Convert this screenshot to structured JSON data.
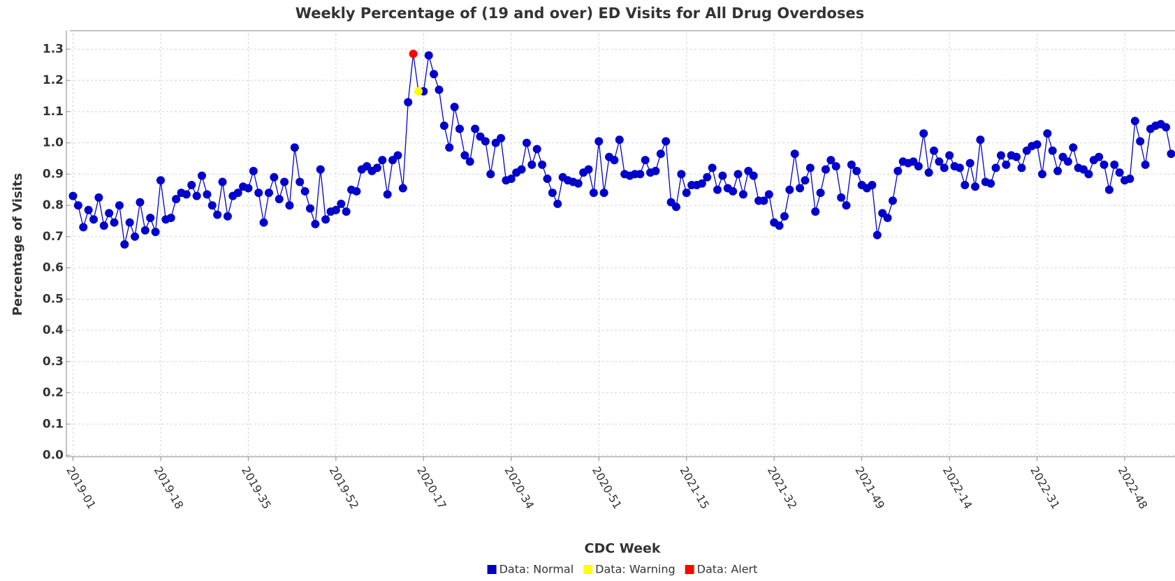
{
  "chart_data": {
    "type": "line",
    "title": "Weekly Percentage of (19 and over) ED Visits for All Drug Overdoses",
    "xlabel": "CDC Week",
    "ylabel": "Percentage of Visits",
    "categories": [
      "2019-01",
      null,
      null,
      null,
      null,
      null,
      null,
      null,
      null,
      null,
      null,
      null,
      null,
      null,
      null,
      null,
      null,
      "2019-18",
      null,
      null,
      null,
      null,
      null,
      null,
      null,
      null,
      null,
      null,
      null,
      null,
      null,
      null,
      null,
      null,
      "2019-35",
      null,
      null,
      null,
      null,
      null,
      null,
      null,
      null,
      null,
      null,
      null,
      null,
      null,
      null,
      null,
      null,
      "2019-52",
      null,
      null,
      null,
      null,
      null,
      null,
      null,
      null,
      null,
      null,
      null,
      null,
      null,
      null,
      null,
      null,
      "2020-17",
      null,
      null,
      null,
      null,
      null,
      null,
      null,
      null,
      null,
      null,
      null,
      null,
      null,
      null,
      null,
      null,
      "2020-34",
      null,
      null,
      null,
      null,
      null,
      null,
      null,
      null,
      null,
      null,
      null,
      null,
      null,
      null,
      null,
      null,
      "2020-51",
      null,
      null,
      null,
      null,
      null,
      null,
      null,
      null,
      null,
      null,
      null,
      null,
      null,
      null,
      null,
      null,
      "2021-15",
      null,
      null,
      null,
      null,
      null,
      null,
      null,
      null,
      null,
      null,
      null,
      null,
      null,
      null,
      null,
      null,
      "2021-32",
      null,
      null,
      null,
      null,
      null,
      null,
      null,
      null,
      null,
      null,
      null,
      null,
      null,
      null,
      null,
      null,
      "2021-49",
      null,
      null,
      null,
      null,
      null,
      null,
      null,
      null,
      null,
      null,
      null,
      null,
      null,
      null,
      null,
      null,
      "2022-14",
      null,
      null,
      null,
      null,
      null,
      null,
      null,
      null,
      null,
      null,
      null,
      null,
      null,
      null,
      null,
      null,
      "2022-31",
      null,
      null,
      null,
      null,
      null,
      null,
      null,
      null,
      null,
      null,
      null,
      null,
      null,
      null,
      null,
      null,
      "2022-48",
      null,
      null,
      null,
      null,
      null,
      null,
      null,
      null,
      null
    ],
    "series": [
      {
        "name": "Data: Normal",
        "color": "#0000cc",
        "values": [
          0.83,
          0.8,
          0.73,
          0.785,
          0.755,
          0.825,
          0.735,
          0.775,
          0.745,
          0.8,
          0.675,
          0.745,
          0.7,
          0.81,
          0.72,
          0.76,
          0.715,
          0.88,
          0.755,
          0.76,
          0.82,
          0.84,
          0.835,
          0.865,
          0.83,
          0.895,
          0.835,
          0.8,
          0.77,
          0.875,
          0.765,
          0.83,
          0.84,
          0.86,
          0.855,
          0.91,
          0.84,
          0.745,
          0.84,
          0.89,
          0.82,
          0.875,
          0.8,
          0.985,
          0.875,
          0.845,
          0.79,
          0.74,
          0.915,
          0.755,
          0.78,
          0.785,
          0.805,
          0.78,
          0.85,
          0.845,
          0.915,
          0.925,
          0.91,
          0.92,
          0.945,
          0.835,
          0.945,
          0.96,
          0.855,
          1.13,
          null,
          null,
          1.165,
          1.28,
          1.22,
          1.17,
          1.055,
          0.985,
          1.115,
          1.045,
          0.96,
          0.94,
          1.045,
          1.02,
          1.005,
          0.9,
          1.0,
          1.015,
          0.88,
          0.885,
          0.905,
          0.915,
          1.0,
          0.93,
          0.98,
          0.93,
          0.885,
          0.84,
          0.805,
          0.89,
          0.88,
          0.875,
          0.87,
          0.905,
          0.915,
          0.84,
          1.005,
          0.84,
          0.955,
          0.945,
          1.01,
          0.9,
          0.895,
          0.9,
          0.9,
          0.945,
          0.905,
          0.91,
          0.965,
          1.005,
          0.81,
          0.795,
          0.9,
          0.84,
          0.865,
          0.865,
          0.87,
          0.89,
          0.92,
          0.85,
          0.895,
          0.855,
          0.845,
          0.9,
          0.835,
          0.91,
          0.895,
          0.815,
          0.815,
          0.835,
          0.745,
          0.735,
          0.765,
          0.85,
          0.965,
          0.855,
          0.88,
          0.92,
          0.78,
          0.84,
          0.915,
          0.945,
          0.925,
          0.825,
          0.8,
          0.93,
          0.91,
          0.865,
          0.855,
          0.865,
          0.705,
          0.775,
          0.76,
          0.815,
          0.91,
          0.94,
          0.935,
          0.94,
          0.925,
          1.03,
          0.905,
          0.975,
          0.94,
          0.92,
          0.96,
          0.925,
          0.92,
          0.865,
          0.935,
          0.86,
          1.01,
          0.875,
          0.87,
          0.92,
          0.96,
          0.93,
          0.96,
          0.955,
          0.92,
          0.975,
          0.99,
          0.995,
          0.9,
          1.03,
          0.975,
          0.91,
          0.955,
          0.94,
          0.985,
          0.92,
          0.915,
          0.9,
          0.945,
          0.955,
          0.93,
          0.85,
          0.93,
          0.905,
          0.88,
          0.885,
          1.07,
          1.005,
          0.93,
          1.045,
          1.055,
          1.06,
          1.05,
          0.965
        ]
      },
      {
        "name": "Data: Warning",
        "color": "#ffff00",
        "values": [
          null,
          null,
          null,
          null,
          null,
          null,
          null,
          null,
          null,
          null,
          null,
          null,
          null,
          null,
          null,
          null,
          null,
          null,
          null,
          null,
          null,
          null,
          null,
          null,
          null,
          null,
          null,
          null,
          null,
          null,
          null,
          null,
          null,
          null,
          null,
          null,
          null,
          null,
          null,
          null,
          null,
          null,
          null,
          null,
          null,
          null,
          null,
          null,
          null,
          null,
          null,
          null,
          null,
          null,
          null,
          null,
          null,
          null,
          null,
          null,
          null,
          null,
          null,
          null,
          null,
          null,
          null,
          1.165,
          null,
          null,
          null,
          null,
          null,
          null,
          null,
          null,
          null,
          null,
          null,
          null,
          null,
          null,
          null,
          null,
          null,
          null,
          null,
          null,
          null,
          null,
          null,
          null,
          null,
          null,
          null,
          null,
          null,
          null,
          null,
          null,
          null,
          null,
          null,
          null,
          null,
          null,
          null,
          null,
          null,
          null,
          null,
          null,
          null,
          null,
          null,
          null,
          null,
          null,
          null,
          null,
          null,
          null,
          null,
          null,
          null,
          null,
          null,
          null,
          null,
          null,
          null,
          null,
          null,
          null,
          null,
          null,
          null,
          null,
          null,
          null,
          null,
          null,
          null,
          null,
          null,
          null,
          null,
          null,
          null,
          null,
          null,
          null,
          null,
          null,
          null,
          null,
          null,
          null,
          null,
          null,
          null,
          null,
          null,
          null,
          null,
          null,
          null,
          null,
          null,
          null,
          null,
          null,
          null,
          null,
          null,
          null,
          null,
          null,
          null,
          null,
          null,
          null,
          null,
          null,
          null,
          null,
          null,
          null,
          null,
          null,
          null,
          null,
          null,
          null,
          null,
          null,
          null,
          null,
          null,
          null,
          null,
          null,
          null,
          null,
          null,
          null,
          null,
          null,
          null,
          null,
          null,
          null,
          null,
          null
        ]
      },
      {
        "name": "Data: Alert",
        "color": "#ff0000",
        "values": [
          null,
          null,
          null,
          null,
          null,
          null,
          null,
          null,
          null,
          null,
          null,
          null,
          null,
          null,
          null,
          null,
          null,
          null,
          null,
          null,
          null,
          null,
          null,
          null,
          null,
          null,
          null,
          null,
          null,
          null,
          null,
          null,
          null,
          null,
          null,
          null,
          null,
          null,
          null,
          null,
          null,
          null,
          null,
          null,
          null,
          null,
          null,
          null,
          null,
          null,
          null,
          null,
          null,
          null,
          null,
          null,
          null,
          null,
          null,
          null,
          null,
          null,
          null,
          null,
          null,
          null,
          1.285,
          null,
          null,
          null,
          null,
          null,
          null,
          null,
          null,
          null,
          null,
          null,
          null,
          null,
          null,
          null,
          null,
          null,
          null,
          null,
          null,
          null,
          null,
          null,
          null,
          null,
          null,
          null,
          null,
          null,
          null,
          null,
          null,
          null,
          null,
          null,
          null,
          null,
          null,
          null,
          null,
          null,
          null,
          null,
          null,
          null,
          null,
          null,
          null,
          null,
          null,
          null,
          null,
          null,
          null,
          null,
          null,
          null,
          null,
          null,
          null,
          null,
          null,
          null,
          null,
          null,
          null,
          null,
          null,
          null,
          null,
          null,
          null,
          null,
          null,
          null,
          null,
          null,
          null,
          null,
          null,
          null,
          null,
          null,
          null,
          null,
          null,
          null,
          null,
          null,
          null,
          null,
          null,
          null,
          null,
          null,
          null,
          null,
          null,
          null,
          null,
          null,
          null,
          null,
          null,
          null,
          null,
          null,
          null,
          null,
          null,
          null,
          null,
          null,
          null,
          null,
          null,
          null,
          null,
          null,
          null,
          null,
          null,
          null,
          null,
          null,
          null,
          null,
          null,
          null,
          null,
          null,
          null,
          null,
          null,
          null,
          null,
          null,
          null,
          null,
          null,
          null,
          null,
          null,
          null,
          null,
          null,
          null
        ]
      }
    ],
    "ylim": [
      0,
      1.35
    ],
    "yticks": [
      {
        "value": 0,
        "label": "0.0"
      },
      0.1,
      0.2,
      0.3,
      0.4,
      0.5,
      0.6,
      0.7,
      0.8,
      0.9,
      {
        "value": 1,
        "label": "1.0"
      },
      1.1,
      1.2,
      1.3
    ],
    "grid": true
  }
}
